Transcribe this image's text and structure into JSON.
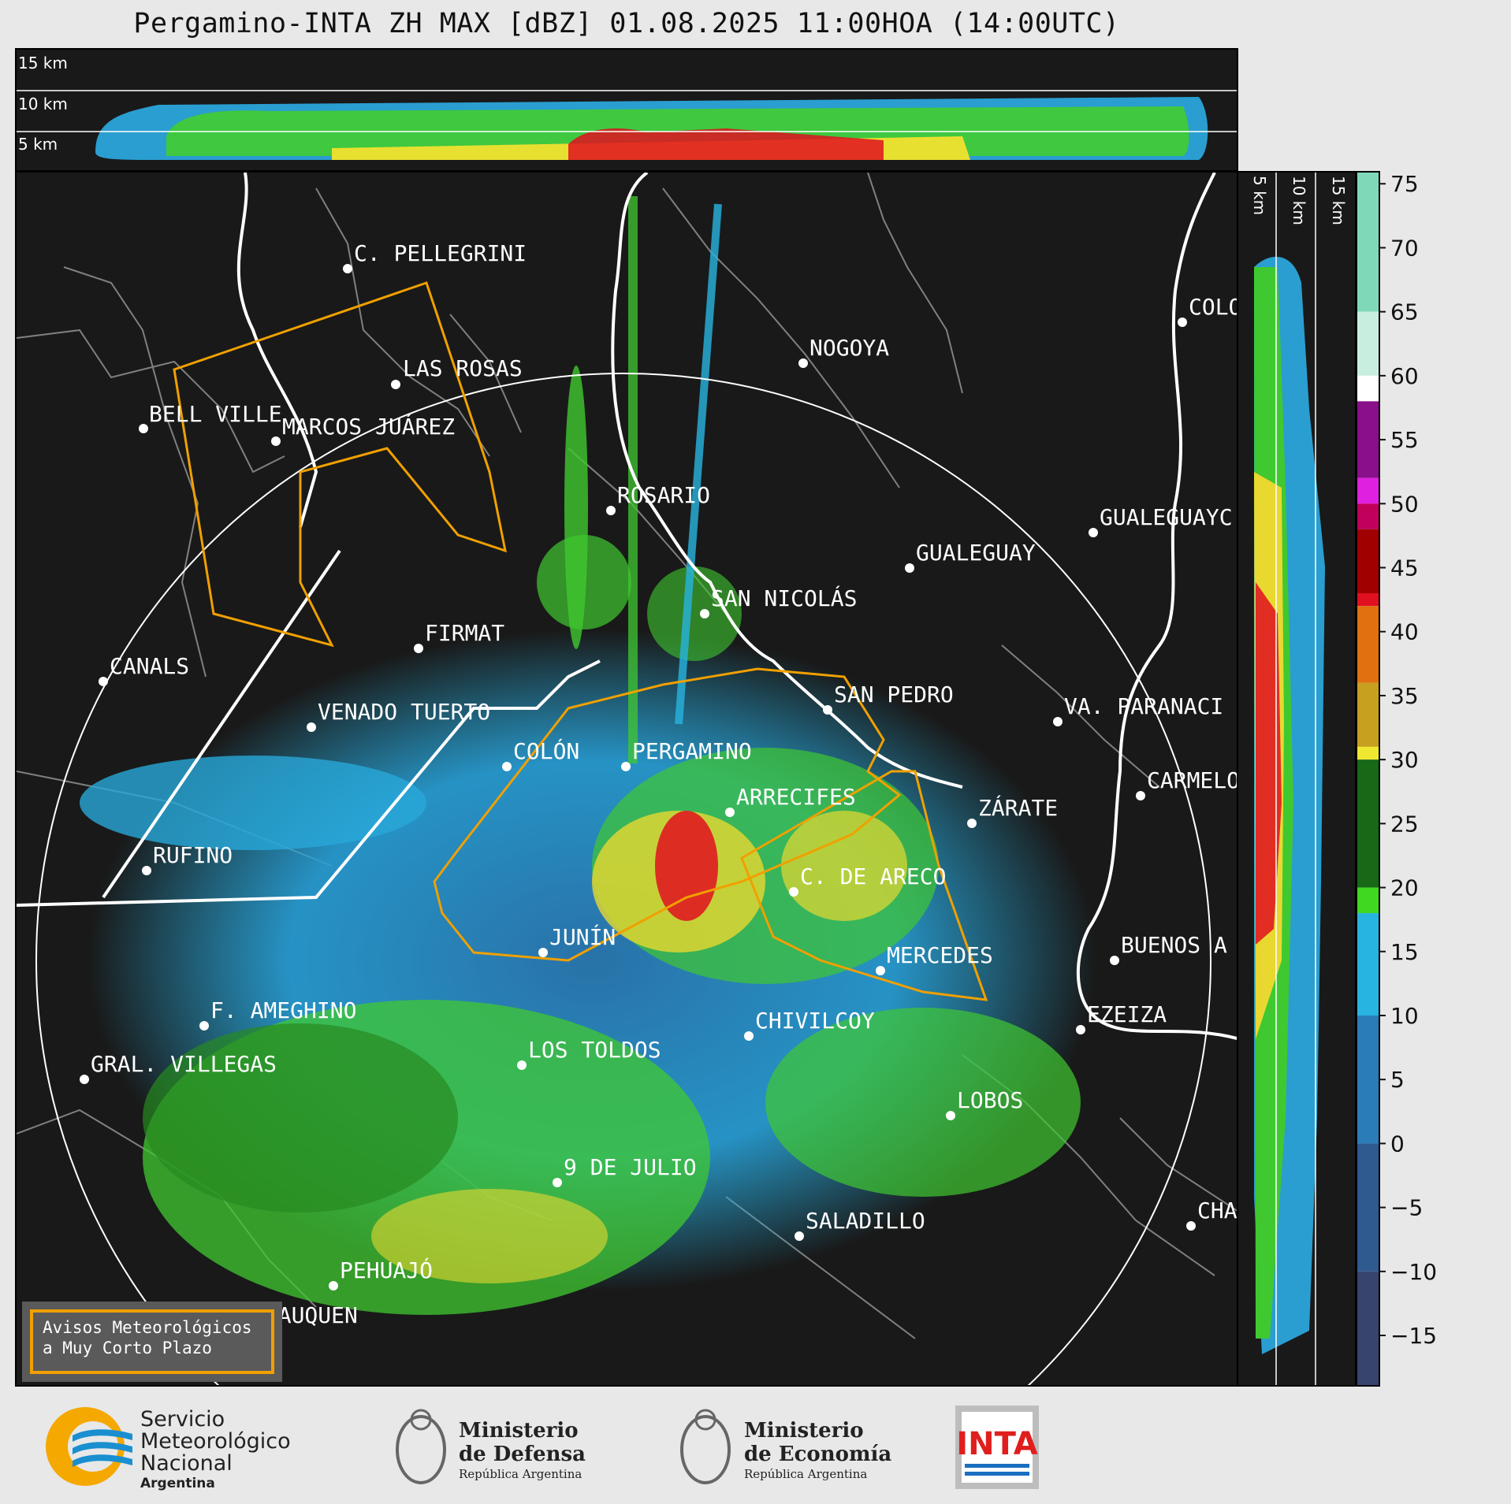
{
  "title": "Pergamino-INTA ZH MAX [dBZ] 01.08.2025 11:00HOA (14:00UTC)",
  "top_profile": {
    "alt_labels": [
      "15 km",
      "10 km",
      "5 km"
    ]
  },
  "side_profile": {
    "alt_labels": [
      "5 km",
      "10 km",
      "15 km"
    ]
  },
  "cities": [
    {
      "name": "C. PELLEGRINI"
    },
    {
      "name": "LAS ROSAS"
    },
    {
      "name": "BELL VILLE"
    },
    {
      "name": "MARCOS JUÁREZ"
    },
    {
      "name": "NOGOYA"
    },
    {
      "name": "COLO"
    },
    {
      "name": "ROSARIO"
    },
    {
      "name": "GUALEGUAYC"
    },
    {
      "name": "GUALEGUAY"
    },
    {
      "name": "SAN NICOLÁS"
    },
    {
      "name": "FIRMAT"
    },
    {
      "name": "CANALS"
    },
    {
      "name": "SAN PEDRO"
    },
    {
      "name": "VENADO TUERTO"
    },
    {
      "name": "VA. PARANACI"
    },
    {
      "name": "COLÓN"
    },
    {
      "name": "PERGAMINO"
    },
    {
      "name": "CARMELO"
    },
    {
      "name": "ARRECIFES"
    },
    {
      "name": "ZÁRATE"
    },
    {
      "name": "RUFINO"
    },
    {
      "name": "C. DE ARECO"
    },
    {
      "name": "JUNÍN"
    },
    {
      "name": "BUENOS A"
    },
    {
      "name": "MERCEDES"
    },
    {
      "name": "F. AMEGHINO"
    },
    {
      "name": "EZEIZA"
    },
    {
      "name": "CHIVILCOY"
    },
    {
      "name": "GRAL. VILLEGAS"
    },
    {
      "name": "LOS TOLDOS"
    },
    {
      "name": "LOBOS"
    },
    {
      "name": "9 DE JULIO"
    },
    {
      "name": "SALADILLO"
    },
    {
      "name": "CHA"
    },
    {
      "name": "PEHUAJÓ"
    },
    {
      "name": "TRENQUE LAUQUEN"
    }
  ],
  "colorbar": {
    "ticks": [
      "75",
      "70",
      "65",
      "60",
      "55",
      "50",
      "45",
      "40",
      "35",
      "30",
      "25",
      "20",
      "15",
      "10",
      "5",
      "0",
      "−5",
      "−10",
      "−15"
    ],
    "stops": [
      {
        "value": 76,
        "color": "#7fd9b8"
      },
      {
        "value": 65,
        "color": "#c8eee0"
      },
      {
        "value": 60,
        "color": "#ffffff"
      },
      {
        "value": 58,
        "color": "#8a0f8a"
      },
      {
        "value": 52,
        "color": "#e020e0"
      },
      {
        "value": 50,
        "color": "#c0005a"
      },
      {
        "value": 48,
        "color": "#a00000"
      },
      {
        "value": 43,
        "color": "#e01020"
      },
      {
        "value": 42,
        "color": "#e07010"
      },
      {
        "value": 36,
        "color": "#c8a020"
      },
      {
        "value": 31,
        "color": "#f0e830"
      },
      {
        "value": 30,
        "color": "#186818"
      },
      {
        "value": 20,
        "color": "#40d820"
      },
      {
        "value": 18,
        "color": "#28b4e0"
      },
      {
        "value": 10,
        "color": "#2a7cb8"
      },
      {
        "value": 0,
        "color": "#2f5a90"
      },
      {
        "value": -10,
        "color": "#37446e"
      },
      {
        "value": -19,
        "color": "#3a3a62"
      }
    ],
    "range": [
      -19,
      76
    ]
  },
  "warning_box": {
    "line1": "Avisos Meteorológicos",
    "line2": "a Muy Corto Plazo"
  },
  "logos": {
    "smn": {
      "line1": "Servicio",
      "line2": "Meteorológico",
      "line3": "Nacional",
      "line4": "Argentina"
    },
    "defensa": {
      "line1": "Ministerio",
      "line2": "de Defensa",
      "line3": "República Argentina"
    },
    "economia": {
      "line1": "Ministerio",
      "line2": "de Economía",
      "line3": "República Argentina"
    },
    "inta": {
      "text": "INTA"
    }
  },
  "colors": {
    "panel_bg": "#191919",
    "coast": "#ffffff",
    "boundary": "#808080",
    "warning": "#f0a000"
  }
}
